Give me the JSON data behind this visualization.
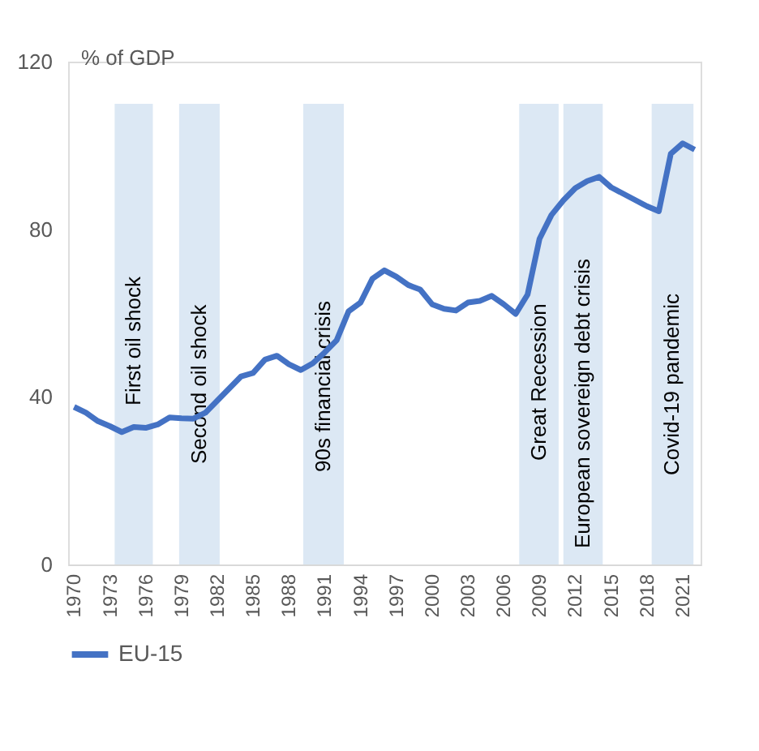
{
  "chart_data": {
    "type": "line",
    "ylabel": "% of GDP",
    "x": [
      1970,
      1971,
      1972,
      1973,
      1974,
      1975,
      1976,
      1977,
      1978,
      1979,
      1980,
      1981,
      1982,
      1983,
      1984,
      1985,
      1986,
      1987,
      1988,
      1989,
      1990,
      1991,
      1992,
      1993,
      1994,
      1995,
      1996,
      1997,
      1998,
      1999,
      2000,
      2001,
      2002,
      2003,
      2004,
      2005,
      2006,
      2007,
      2008,
      2009,
      2010,
      2011,
      2012,
      2013,
      2014,
      2015,
      2016,
      2017,
      2018,
      2019,
      2020,
      2021,
      2022
    ],
    "series": [
      {
        "name": "EU-15",
        "color": "#4472c4",
        "values": [
          37.6,
          36.2,
          34.2,
          33,
          31.6,
          32.8,
          32.6,
          33.4,
          35.1,
          34.9,
          34.8,
          36.2,
          39.1,
          42,
          44.9,
          45.7,
          48.9,
          49.8,
          47.8,
          46.4,
          48,
          50.6,
          53.5,
          60.4,
          62.5,
          68.2,
          70.2,
          68.7,
          66.7,
          65.6,
          62.1,
          61,
          60.6,
          62.5,
          62.9,
          64.1,
          62.1,
          59.8,
          64.4,
          77.7,
          83.4,
          86.9,
          89.8,
          91.5,
          92.5,
          90,
          88.5,
          87,
          85.5,
          84.3,
          98,
          100.5,
          99
        ]
      }
    ],
    "xlim": [
      1969.5,
      2022.5
    ],
    "xticks": [
      1970,
      1973,
      1976,
      1979,
      1982,
      1985,
      1988,
      1991,
      1994,
      1997,
      2000,
      2003,
      2006,
      2009,
      2012,
      2015,
      2018,
      2021
    ],
    "ylim": [
      0,
      120
    ],
    "yticks": [
      0,
      40,
      80,
      120
    ],
    "bands": [
      {
        "axis": "x",
        "from": 1973.4,
        "to": 1976.6,
        "label": "First oil shock",
        "color": "#dce8f4"
      },
      {
        "axis": "x",
        "from": 1978.8,
        "to": 1982.2,
        "label": "Second oil shock",
        "color": "#dce8f4"
      },
      {
        "axis": "x",
        "from": 1989.2,
        "to": 1992.6,
        "label": "90s financial crisis",
        "color": "#dce8f4"
      },
      {
        "axis": "x",
        "from": 2007.3,
        "to": 2010.6,
        "label": "Great Recession",
        "color": "#dce8f4"
      },
      {
        "axis": "x",
        "from": 2011.0,
        "to": 2014.3,
        "label": "European sovereign debt crisis",
        "color": "#dce8f4"
      },
      {
        "axis": "x",
        "from": 2018.4,
        "to": 2021.9,
        "label": "Covid-19 pandemic",
        "color": "#dce8f4"
      }
    ],
    "grid": false,
    "legend": "bottom",
    "marker": "none",
    "line_style": "solid"
  }
}
